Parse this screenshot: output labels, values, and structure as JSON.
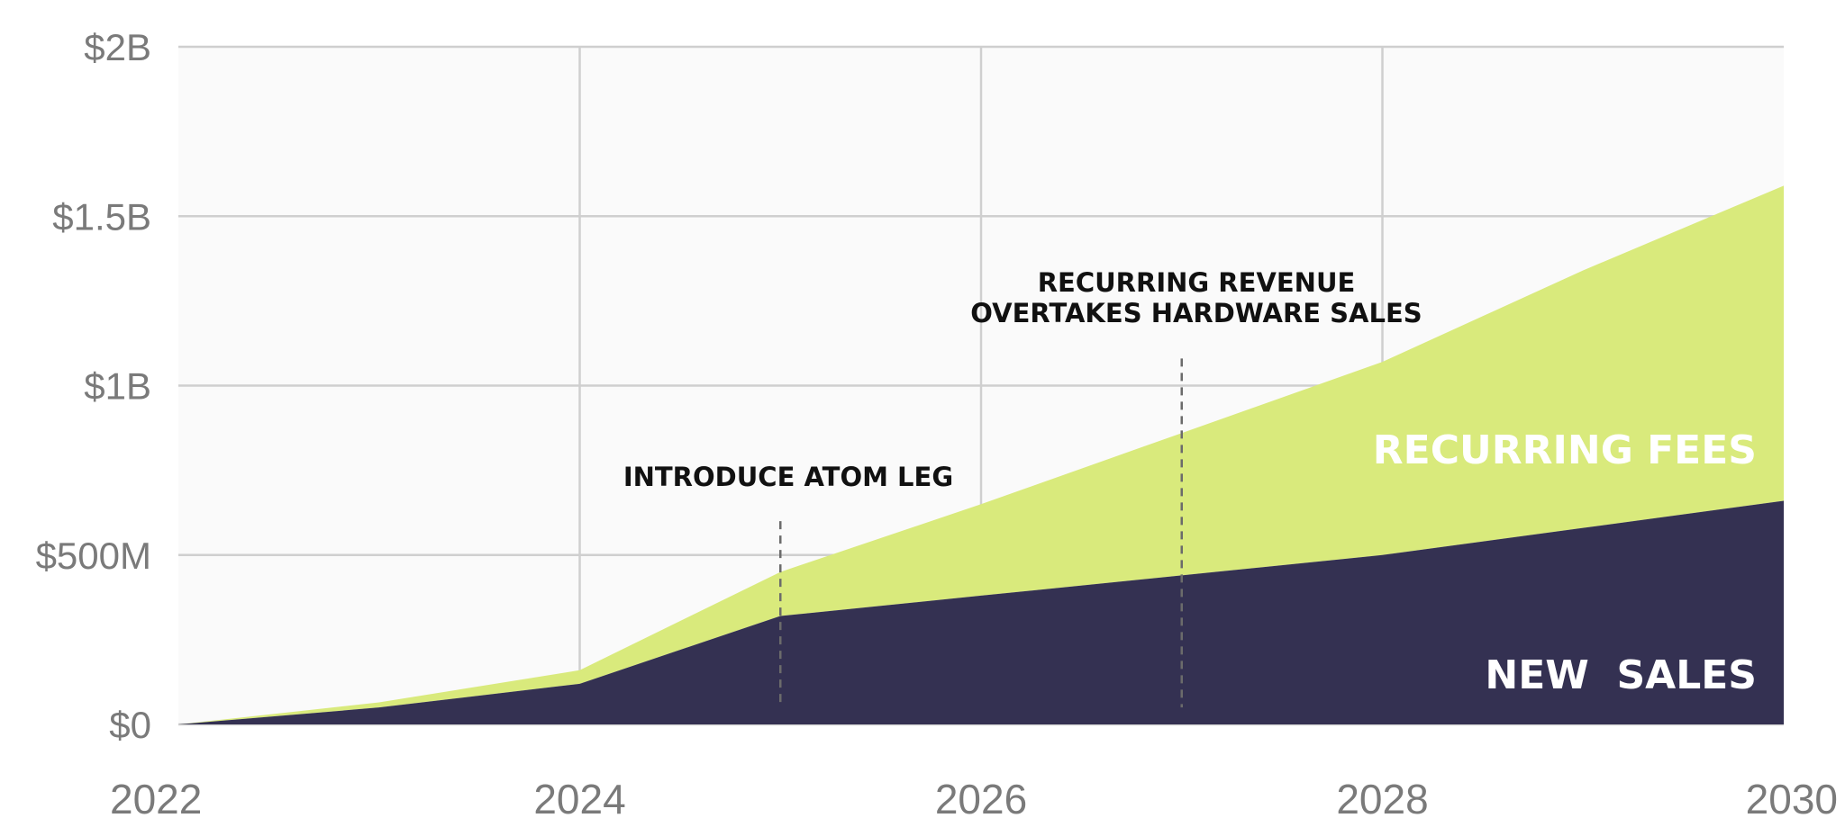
{
  "chart_data": {
    "type": "area",
    "stacked": true,
    "x": [
      2022,
      2023,
      2024,
      2025,
      2026,
      2027,
      2028,
      2029,
      2030
    ],
    "series": [
      {
        "name": "NEW  SALES",
        "color": "#343152",
        "values": [
          0,
          0.05,
          0.12,
          0.32,
          0.38,
          0.44,
          0.5,
          0.58,
          0.66
        ]
      },
      {
        "name": "RECURRING FEES",
        "color": "#d9ea7c",
        "values": [
          0,
          0.015,
          0.04,
          0.13,
          0.27,
          0.42,
          0.57,
          0.76,
          0.93
        ]
      }
    ],
    "xlim": [
      2022,
      2030
    ],
    "ylim": [
      0,
      2
    ],
    "yticks": [
      {
        "value": 0,
        "label": "$0"
      },
      {
        "value": 0.5,
        "label": "$500M"
      },
      {
        "value": 1,
        "label": "$1B"
      },
      {
        "value": 1.5,
        "label": "$1.5B"
      },
      {
        "value": 2,
        "label": "$2B"
      }
    ],
    "xticks": [
      {
        "value": 2022,
        "label": "2022"
      },
      {
        "value": 2024,
        "label": "2024"
      },
      {
        "value": 2026,
        "label": "2026"
      },
      {
        "value": 2028,
        "label": "2028"
      },
      {
        "value": 2030,
        "label": "2030"
      }
    ],
    "grid": true,
    "background": "#fafafa",
    "annotations": [
      {
        "x": 2025,
        "lines": [
          "INTRODUCE ATOM LEG"
        ]
      },
      {
        "x": 2027,
        "lines": [
          "RECURRING REVENUE",
          "OVERTAKES HARDWARE SALES"
        ]
      }
    ],
    "series_labels": {
      "recurring": "RECURRING FEES",
      "new_sales": "NEW  SALES"
    }
  }
}
